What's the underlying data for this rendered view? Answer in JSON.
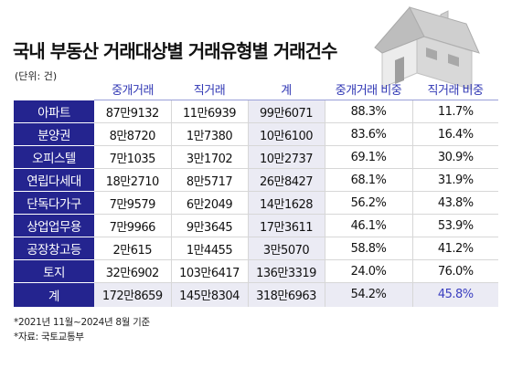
{
  "title": "국내 부동산 거래대상별 거래유형별 거래건수",
  "unit": "(단위: 건)",
  "columns": [
    "중개거래",
    "직거래",
    "계",
    "중개거래 비중",
    "직거래 비중"
  ],
  "rows": [
    {
      "label": "아파트",
      "values": [
        "87만9132",
        "11만6939",
        "99만6071",
        "88.3%",
        "11.7%"
      ]
    },
    {
      "label": "분양권",
      "values": [
        "8만8720",
        "1만7380",
        "10만6100",
        "83.6%",
        "16.4%"
      ]
    },
    {
      "label": "오피스텔",
      "values": [
        "7만1035",
        "3만1702",
        "10만2737",
        "69.1%",
        "30.9%"
      ]
    },
    {
      "label": "연립다세대",
      "values": [
        "18만2710",
        "8만5717",
        "26만8427",
        "68.1%",
        "31.9%"
      ]
    },
    {
      "label": "단독다가구",
      "values": [
        "7만9579",
        "6만2049",
        "14만1628",
        "56.2%",
        "43.8%"
      ]
    },
    {
      "label": "상업업무용",
      "values": [
        "7만9966",
        "9만3645",
        "17만3611",
        "46.1%",
        "53.9%"
      ]
    },
    {
      "label": "공장창고등",
      "values": [
        "2만615",
        "1만4455",
        "3만5070",
        "58.8%",
        "41.2%"
      ]
    },
    {
      "label": "토지",
      "values": [
        "32만6902",
        "103만6417",
        "136만3319",
        "24.0%",
        "76.0%"
      ]
    }
  ],
  "total": {
    "label": "계",
    "values": [
      "172만8659",
      "145만8304",
      "318만6963",
      "54.2%",
      "45.8%"
    ]
  },
  "notes": [
    "*2021년 11월~2024년 8월 기준",
    "*자료: 국토교통부"
  ],
  "colors": {
    "label_bg": "#24248f",
    "header_text": "#2f36b4",
    "highlight": "#3b3fc0",
    "shade": "#ebebf4"
  },
  "illustration": "house-icon"
}
